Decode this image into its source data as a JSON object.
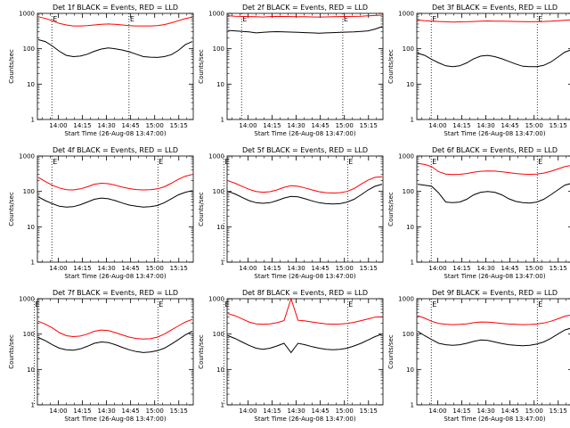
{
  "chart_data": [
    {
      "type": "line",
      "title": "Det 1f BLACK = Events, RED = LLD",
      "xlabel": "Start Time (26-Aug-08 13:47:00)",
      "ylabel": "Counts/sec",
      "y_scale": "log",
      "ylim": [
        1,
        1000
      ],
      "yticks": [
        "1",
        "10",
        "100",
        "1000"
      ],
      "xticks": [
        "14:00",
        "14:15",
        "14:30",
        "14:45",
        "15:00",
        "15:15"
      ],
      "markers": [
        "E",
        "E"
      ],
      "marker_times": [
        "13:56",
        "14:44"
      ],
      "series": [
        {
          "color": "#000000",
          "values": [
            180,
            160,
            120,
            85,
            65,
            60,
            62,
            70,
            85,
            98,
            105,
            100,
            92,
            82,
            70,
            60,
            58,
            57,
            60,
            68,
            90,
            130,
            160
          ]
        },
        {
          "color": "#ff0000",
          "values": [
            800,
            720,
            620,
            520,
            470,
            440,
            440,
            450,
            470,
            490,
            500,
            490,
            470,
            450,
            440,
            440,
            440,
            450,
            480,
            540,
            620,
            710,
            780
          ]
        }
      ]
    },
    {
      "type": "line",
      "title": "Det 2f BLACK = Events, RED = LLD",
      "xlabel": "Start Time (26-Aug-08 13:47:00)",
      "ylabel": "Counts/sec",
      "y_scale": "log",
      "ylim": [
        1,
        1000
      ],
      "yticks": [
        "1",
        "10",
        "100",
        "1000"
      ],
      "xticks": [
        "14:00",
        "14:15",
        "14:30",
        "14:45",
        "15:00",
        "15:15"
      ],
      "markers": [
        "E",
        "E"
      ],
      "marker_times": [
        "13:56",
        "14:59"
      ],
      "series": [
        {
          "color": "#000000",
          "values": [
            330,
            320,
            310,
            300,
            280,
            290,
            300,
            305,
            300,
            295,
            290,
            285,
            280,
            275,
            280,
            285,
            290,
            295,
            300,
            310,
            320,
            360,
            420
          ]
        },
        {
          "color": "#ff0000",
          "values": [
            860,
            830,
            820,
            810,
            800,
            790,
            810,
            820,
            815,
            810,
            805,
            800,
            795,
            790,
            795,
            800,
            810,
            815,
            820,
            830,
            850,
            870,
            890
          ]
        }
      ]
    },
    {
      "type": "line",
      "title": "Det 3f BLACK = Events, RED = LLD",
      "xlabel": "Start Time (26-Aug-08 13:47:00)",
      "ylabel": "Counts/sec",
      "y_scale": "log",
      "ylim": [
        1,
        1000
      ],
      "yticks": [
        "1",
        "10",
        "100",
        "1000"
      ],
      "xticks": [
        "14:00",
        "14:15",
        "14:30",
        "14:45",
        "15:00",
        "15:15"
      ],
      "markers": [
        "E",
        "E"
      ],
      "marker_times": [
        "13:56",
        "15:02"
      ],
      "series": [
        {
          "color": "#000000",
          "values": [
            75,
            65,
            50,
            40,
            33,
            31,
            33,
            40,
            52,
            62,
            65,
            60,
            52,
            44,
            37,
            32,
            31,
            31,
            34,
            42,
            58,
            80,
            95
          ]
        },
        {
          "color": "#ff0000",
          "values": [
            650,
            620,
            600,
            590,
            580,
            570,
            575,
            580,
            590,
            600,
            610,
            605,
            600,
            595,
            590,
            585,
            580,
            585,
            590,
            600,
            620,
            640,
            660
          ]
        }
      ]
    },
    {
      "type": "line",
      "title": "Det 4f BLACK = Events, RED = LLD",
      "xlabel": "Start Time (26-Aug-08 13:47:00)",
      "ylabel": "Counts/sec",
      "y_scale": "log",
      "ylim": [
        1,
        1000
      ],
      "yticks": [
        "1",
        "10",
        "100",
        "1000"
      ],
      "xticks": [
        "14:00",
        "14:15",
        "14:30",
        "14:45",
        "15:00",
        "15:15"
      ],
      "markers": [
        "E",
        "E"
      ],
      "marker_times": [
        "13:56",
        "15:02"
      ],
      "series": [
        {
          "color": "#000000",
          "values": [
            70,
            55,
            45,
            38,
            36,
            37,
            42,
            50,
            60,
            65,
            62,
            55,
            47,
            41,
            38,
            36,
            37,
            40,
            48,
            62,
            80,
            95,
            105
          ]
        },
        {
          "color": "#ff0000",
          "values": [
            250,
            190,
            150,
            125,
            112,
            110,
            118,
            135,
            160,
            170,
            165,
            150,
            132,
            120,
            113,
            110,
            112,
            118,
            135,
            170,
            220,
            270,
            300
          ]
        }
      ]
    },
    {
      "type": "line",
      "title": "Det 5f BLACK = Events, RED = LLD",
      "xlabel": "Start Time (26-Aug-08 13:47:00)",
      "ylabel": "Counts/sec",
      "y_scale": "log",
      "ylim": [
        1,
        1000
      ],
      "yticks": [
        "1",
        "10",
        "100",
        "1000"
      ],
      "xticks": [
        "14:00",
        "14:15",
        "14:30",
        "14:45",
        "15:00",
        "15:15"
      ],
      "markers": [
        "E",
        "E"
      ],
      "marker_times": [
        "13:45",
        "15:02"
      ],
      "series": [
        {
          "color": "#000000",
          "values": [
            100,
            85,
            68,
            55,
            48,
            46,
            48,
            55,
            65,
            72,
            70,
            62,
            54,
            48,
            45,
            44,
            45,
            50,
            60,
            80,
            110,
            140,
            160
          ]
        },
        {
          "color": "#ff0000",
          "values": [
            200,
            170,
            140,
            115,
            100,
            95,
            98,
            110,
            130,
            145,
            140,
            125,
            110,
            98,
            92,
            90,
            92,
            100,
            120,
            160,
            210,
            250,
            260
          ]
        }
      ]
    },
    {
      "type": "line",
      "title": "Det 6f BLACK = Events, RED = LLD",
      "xlabel": "Start Time (26-Aug-08 13:47:00)",
      "ylabel": "Counts/sec",
      "y_scale": "log",
      "ylim": [
        1,
        1000
      ],
      "yticks": [
        "1",
        "10",
        "100",
        "1000"
      ],
      "xticks": [
        "14:00",
        "14:15",
        "14:30",
        "14:45",
        "15:00",
        "15:15"
      ],
      "markers": [
        "E",
        "E"
      ],
      "marker_times": [
        "13:56",
        "15:02"
      ],
      "series": [
        {
          "color": "#000000",
          "values": [
            160,
            150,
            140,
            90,
            50,
            48,
            50,
            60,
            80,
            95,
            100,
            95,
            80,
            62,
            52,
            48,
            47,
            50,
            60,
            80,
            110,
            150,
            170
          ]
        },
        {
          "color": "#ff0000",
          "values": [
            620,
            580,
            500,
            360,
            310,
            300,
            305,
            320,
            350,
            370,
            380,
            375,
            360,
            340,
            320,
            310,
            305,
            310,
            330,
            370,
            430,
            500,
            550
          ]
        }
      ]
    },
    {
      "type": "line",
      "title": "Det 7f BLACK = Events, RED = LLD",
      "xlabel": "Start Time (26-Aug-08 13:47:00)",
      "ylabel": "Counts/sec",
      "y_scale": "log",
      "ylim": [
        1,
        1000
      ],
      "yticks": [
        "1",
        "10",
        "100",
        "1000"
      ],
      "xticks": [
        "14:00",
        "14:15",
        "14:30",
        "14:45",
        "15:00",
        "15:15"
      ],
      "markers": [
        "E",
        "E"
      ],
      "marker_times": [
        "13:45",
        "15:02"
      ],
      "series": [
        {
          "color": "#000000",
          "values": [
            80,
            65,
            50,
            40,
            36,
            35,
            38,
            45,
            55,
            60,
            58,
            50,
            42,
            36,
            32,
            30,
            31,
            34,
            40,
            52,
            70,
            95,
            120
          ]
        },
        {
          "color": "#ff0000",
          "values": [
            230,
            190,
            150,
            110,
            90,
            85,
            88,
            100,
            120,
            130,
            125,
            110,
            95,
            82,
            75,
            72,
            74,
            82,
            100,
            130,
            170,
            220,
            260
          ]
        }
      ]
    },
    {
      "type": "line",
      "title": "Det 8f BLACK = Events, RED = LLD",
      "xlabel": "Start Time (26-Aug-08 13:47:00)",
      "ylabel": "Counts/sec",
      "y_scale": "log",
      "ylim": [
        1,
        1000
      ],
      "yticks": [
        "1",
        "10",
        "100",
        "1000"
      ],
      "xticks": [
        "14:00",
        "14:15",
        "14:30",
        "14:45",
        "15:00",
        "15:15"
      ],
      "markers": [
        "E",
        "E"
      ],
      "marker_times": [
        "13:45",
        "15:02"
      ],
      "series": [
        {
          "color": "#000000",
          "values": [
            90,
            75,
            60,
            48,
            40,
            37,
            40,
            46,
            55,
            30,
            55,
            50,
            44,
            40,
            37,
            36,
            37,
            40,
            46,
            55,
            68,
            85,
            100
          ]
        },
        {
          "color": "#ff0000",
          "values": [
            380,
            330,
            270,
            220,
            195,
            190,
            195,
            210,
            240,
            1000,
            245,
            235,
            220,
            205,
            195,
            190,
            192,
            200,
            215,
            240,
            270,
            300,
            310
          ]
        }
      ]
    },
    {
      "type": "line",
      "title": "Det 9f BLACK = Events, RED = LLD",
      "xlabel": "Start Time (26-Aug-08 13:47:00)",
      "ylabel": "Counts/sec",
      "y_scale": "log",
      "ylim": [
        1,
        1000
      ],
      "yticks": [
        "1",
        "10",
        "100",
        "1000"
      ],
      "xticks": [
        "14:00",
        "14:15",
        "14:30",
        "14:45",
        "15:00",
        "15:15"
      ],
      "markers": [
        "E",
        "E"
      ],
      "marker_times": [
        "13:56",
        "15:02"
      ],
      "series": [
        {
          "color": "#000000",
          "values": [
            120,
            90,
            70,
            55,
            50,
            48,
            50,
            55,
            62,
            68,
            66,
            60,
            54,
            50,
            48,
            47,
            48,
            52,
            60,
            75,
            100,
            130,
            150
          ]
        },
        {
          "color": "#ff0000",
          "values": [
            330,
            280,
            230,
            200,
            190,
            185,
            188,
            195,
            210,
            220,
            218,
            210,
            200,
            192,
            188,
            185,
            187,
            192,
            205,
            230,
            270,
            320,
            350
          ]
        }
      ]
    }
  ]
}
